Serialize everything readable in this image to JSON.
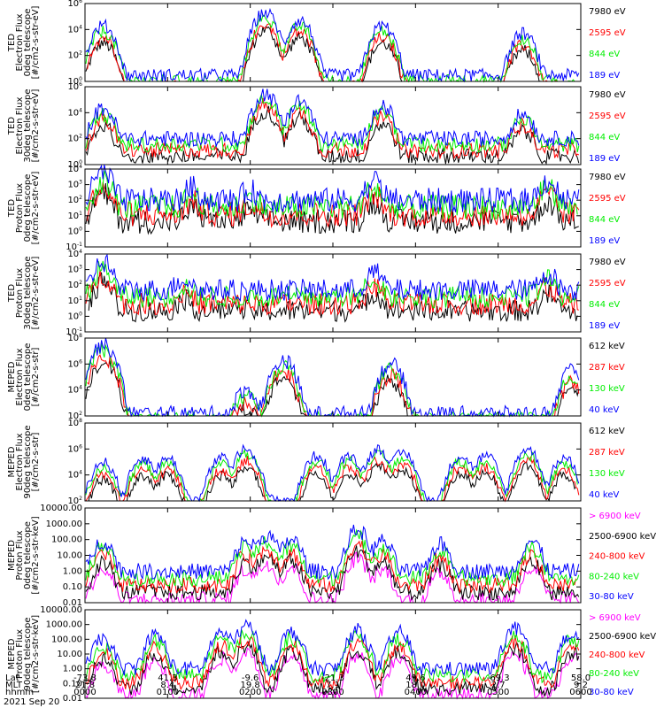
{
  "date_label": "2021 Sep 20",
  "footer": {
    "row_labels": [
      "Lat",
      "MLT",
      "hhmm"
    ],
    "columns": [
      {
        "lat": "-73.8",
        "mlt": "21.8",
        "hhmm": "0000"
      },
      {
        "lat": "41.3",
        "mlt": "8.4",
        "hhmm": "0100"
      },
      {
        "lat": "-9.6",
        "mlt": "19.8",
        "hhmm": "0200"
      },
      {
        "lat": "-21.3",
        "mlt": "7.1",
        "hhmm": "0300"
      },
      {
        "lat": "49.6",
        "mlt": "18.0",
        "hhmm": "0400"
      },
      {
        "lat": "-69.3",
        "mlt": "2.7",
        "hhmm": "0500"
      },
      {
        "lat": "58.0",
        "mlt": "9.2",
        "hhmm": "0600"
      }
    ]
  },
  "colors": {
    "blue": "#0000ff",
    "red": "#ff0000",
    "green": "#00ee00",
    "black": "#000000",
    "magenta": "#ff00ff"
  },
  "chart_data": [
    {
      "type": "scatter",
      "ylabel": [
        "TED",
        "Electron Flux",
        "0deg telescope",
        "[#/cm2-s-str-eV]"
      ],
      "yscale": "log",
      "yticks": [
        "10^0",
        "10^2",
        "10^4",
        "10^6"
      ],
      "ylim": [
        1,
        1000000
      ],
      "legend": [
        {
          "name": "7980 eV",
          "color": "black"
        },
        {
          "name": "2595 eV",
          "color": "red"
        },
        {
          "name": "844 eV",
          "color": "green"
        },
        {
          "name": "189 eV",
          "color": "blue"
        }
      ],
      "peaks": [
        {
          "t": 0.22,
          "y": 20000
        },
        {
          "t": 2.18,
          "y": 200000
        },
        {
          "t": 2.6,
          "y": 50000
        },
        {
          "t": 3.6,
          "y": 20000
        },
        {
          "t": 5.3,
          "y": 5000
        }
      ],
      "baseline": 3,
      "noise": 0.5
    },
    {
      "type": "scatter",
      "ylabel": [
        "TED",
        "Electron Flux",
        "30deg telescope",
        "[#/cm2-s-str-eV]"
      ],
      "yscale": "log",
      "yticks": [
        "10^0",
        "10^2",
        "10^4",
        "10^6"
      ],
      "ylim": [
        1,
        1000000
      ],
      "legend": [
        {
          "name": "7980 eV",
          "color": "black"
        },
        {
          "name": "2595 eV",
          "color": "red"
        },
        {
          "name": "844 eV",
          "color": "green"
        },
        {
          "name": "189 eV",
          "color": "blue"
        }
      ],
      "peaks": [
        {
          "t": 0.22,
          "y": 20000
        },
        {
          "t": 2.18,
          "y": 300000
        },
        {
          "t": 2.6,
          "y": 80000
        },
        {
          "t": 3.6,
          "y": 30000
        },
        {
          "t": 5.3,
          "y": 8000
        }
      ],
      "baseline": 100,
      "noise": 0.6
    },
    {
      "type": "scatter",
      "ylabel": [
        "TED",
        "Proton Flux",
        "0deg telescope",
        "[#/cm2-s-str-eV]"
      ],
      "yscale": "log",
      "yticks": [
        "10^-1",
        "10^0",
        "10^1",
        "10^2",
        "10^3",
        "10^4"
      ],
      "ylim": [
        0.1,
        10000
      ],
      "legend": [
        {
          "name": "7980 eV",
          "color": "black"
        },
        {
          "name": "2595 eV",
          "color": "red"
        },
        {
          "name": "844 eV",
          "color": "green"
        },
        {
          "name": "189 eV",
          "color": "blue"
        }
      ],
      "peaks": [
        {
          "t": 0.22,
          "y": 5000
        },
        {
          "t": 1.3,
          "y": 500
        },
        {
          "t": 2.0,
          "y": 300
        },
        {
          "t": 3.5,
          "y": 1500
        },
        {
          "t": 5.6,
          "y": 1500
        }
      ],
      "baseline": 100,
      "noise": 0.8
    },
    {
      "type": "scatter",
      "ylabel": [
        "TED",
        "Proton Flux",
        "30deg telescope",
        "[#/cm2-s-str-eV]"
      ],
      "yscale": "log",
      "yticks": [
        "10^-1",
        "10^0",
        "10^1",
        "10^2",
        "10^3",
        "10^4"
      ],
      "ylim": [
        0.1,
        10000
      ],
      "legend": [
        {
          "name": "7980 eV",
          "color": "black"
        },
        {
          "name": "2595 eV",
          "color": "red"
        },
        {
          "name": "844 eV",
          "color": "green"
        },
        {
          "name": "189 eV",
          "color": "blue"
        }
      ],
      "peaks": [
        {
          "t": 0.22,
          "y": 3000
        },
        {
          "t": 1.2,
          "y": 200
        },
        {
          "t": 3.5,
          "y": 600
        },
        {
          "t": 5.6,
          "y": 500
        }
      ],
      "baseline": 50,
      "noise": 0.7
    },
    {
      "type": "scatter",
      "ylabel": [
        "MEPED",
        "Electron Flux",
        "0deg telescope",
        "[#/cm2-s-str]"
      ],
      "yscale": "log",
      "yticks": [
        "10^2",
        "10^4",
        "10^6",
        "10^8"
      ],
      "ylim": [
        100,
        100000000
      ],
      "legend": [
        {
          "name": "612 keV",
          "color": "black"
        },
        {
          "name": "287 keV",
          "color": "red"
        },
        {
          "name": "130 keV",
          "color": "green"
        },
        {
          "name": "40 keV",
          "color": "blue"
        }
      ],
      "peaks": [
        {
          "t": 0.22,
          "y": 30000000
        },
        {
          "t": 1.95,
          "y": 10000
        },
        {
          "t": 2.4,
          "y": 2000000
        },
        {
          "t": 3.7,
          "y": 1000000
        },
        {
          "t": 5.9,
          "y": 300000
        }
      ],
      "baseline": 150,
      "noise": 0.6
    },
    {
      "type": "scatter",
      "ylabel": [
        "MEPED",
        "Electron Flux",
        "90deg telescope",
        "[#/cm2-s-str]"
      ],
      "yscale": "log",
      "yticks": [
        "10^2",
        "10^4",
        "10^6",
        "10^8"
      ],
      "ylim": [
        100,
        100000000
      ],
      "legend": [
        {
          "name": "612 keV",
          "color": "black"
        },
        {
          "name": "287 keV",
          "color": "red"
        },
        {
          "name": "130 keV",
          "color": "green"
        },
        {
          "name": "40 keV",
          "color": "blue"
        }
      ],
      "peaks": [
        {
          "t": 0.22,
          "y": 100000
        },
        {
          "t": 0.7,
          "y": 200000
        },
        {
          "t": 1.0,
          "y": 200000
        },
        {
          "t": 1.65,
          "y": 200000
        },
        {
          "t": 1.95,
          "y": 1000000
        },
        {
          "t": 2.8,
          "y": 300000
        },
        {
          "t": 3.2,
          "y": 300000
        },
        {
          "t": 3.55,
          "y": 1000000
        },
        {
          "t": 3.85,
          "y": 500000
        },
        {
          "t": 4.55,
          "y": 300000
        },
        {
          "t": 4.85,
          "y": 300000
        },
        {
          "t": 5.35,
          "y": 1000000
        },
        {
          "t": 5.8,
          "y": 200000
        }
      ],
      "baseline": 120,
      "noise": 0.4
    },
    {
      "type": "scatter",
      "ylabel": [
        "MEPED",
        "Proton Flux",
        "0deg telescope",
        "[#/cm2-s-str-keV]"
      ],
      "yscale": "log",
      "yticks": [
        "0.01",
        "0.10",
        "1.00",
        "10.00",
        "100.00",
        "1000.00",
        "10000.00"
      ],
      "ylim": [
        0.01,
        10000
      ],
      "legend": [
        {
          "name": "> 6900 keV",
          "color": "magenta"
        },
        {
          "name": "2500-6900 keV",
          "color": "black"
        },
        {
          "name": "240-800 keV",
          "color": "red"
        },
        {
          "name": "80-240 keV",
          "color": "green"
        },
        {
          "name": "30-80 keV",
          "color": "blue"
        }
      ],
      "peaks": [
        {
          "t": 0.22,
          "y": 80
        },
        {
          "t": 1.95,
          "y": 80
        },
        {
          "t": 2.2,
          "y": 200
        },
        {
          "t": 2.5,
          "y": 100
        },
        {
          "t": 3.3,
          "y": 400
        },
        {
          "t": 3.6,
          "y": 80
        },
        {
          "t": 4.3,
          "y": 50
        },
        {
          "t": 5.4,
          "y": 80
        }
      ],
      "baseline": 1,
      "noise": 0.5
    },
    {
      "type": "scatter",
      "ylabel": [
        "MEPED",
        "Proton Flux",
        "90deg telescope",
        "[#/cm2-s-str-keV]"
      ],
      "yscale": "log",
      "yticks": [
        "0.01",
        "0.10",
        "1.00",
        "10.00",
        "100.00",
        "1000.00",
        "10000.00"
      ],
      "ylim": [
        0.01,
        10000
      ],
      "legend": [
        {
          "name": "> 6900 keV",
          "color": "magenta"
        },
        {
          "name": "2500-6900 keV",
          "color": "black"
        },
        {
          "name": "240-800 keV",
          "color": "red"
        },
        {
          "name": "80-240 keV",
          "color": "green"
        },
        {
          "name": "30-80 keV",
          "color": "blue"
        }
      ],
      "peaks": [
        {
          "t": 0.22,
          "y": 100
        },
        {
          "t": 0.85,
          "y": 200
        },
        {
          "t": 1.65,
          "y": 300
        },
        {
          "t": 1.95,
          "y": 800
        },
        {
          "t": 2.5,
          "y": 300
        },
        {
          "t": 3.3,
          "y": 400
        },
        {
          "t": 3.8,
          "y": 300
        },
        {
          "t": 5.2,
          "y": 500
        },
        {
          "t": 5.9,
          "y": 300
        }
      ],
      "baseline": 1,
      "noise": 0.5
    }
  ]
}
